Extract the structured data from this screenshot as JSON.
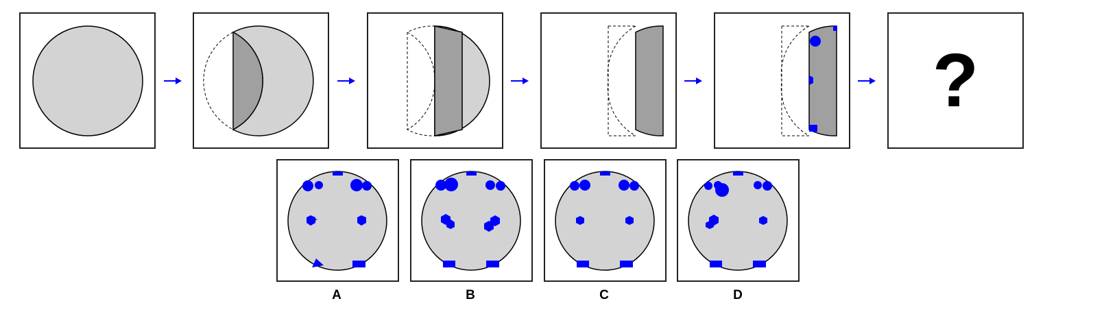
{
  "question_mark": "?",
  "colors": {
    "shape_light": "#d3d3d3",
    "shape_dark": "#a0a0a0",
    "stroke": "#000000",
    "hole": "#0000ff",
    "arrow": "#0000ff",
    "border": "#222222"
  },
  "sequence": [
    {
      "step": "unfolded-circle",
      "icon": "circle"
    },
    {
      "step": "first-fold",
      "icon": "folded-circle-left"
    },
    {
      "step": "second-fold",
      "icon": "folded-strip"
    },
    {
      "step": "third-fold",
      "icon": "folded-narrow-strip"
    },
    {
      "step": "punched",
      "icon": "punched-strip"
    },
    {
      "step": "answer",
      "icon": "question-mark"
    }
  ],
  "options": [
    {
      "label": "A"
    },
    {
      "label": "B"
    },
    {
      "label": "C"
    },
    {
      "label": "D"
    }
  ]
}
